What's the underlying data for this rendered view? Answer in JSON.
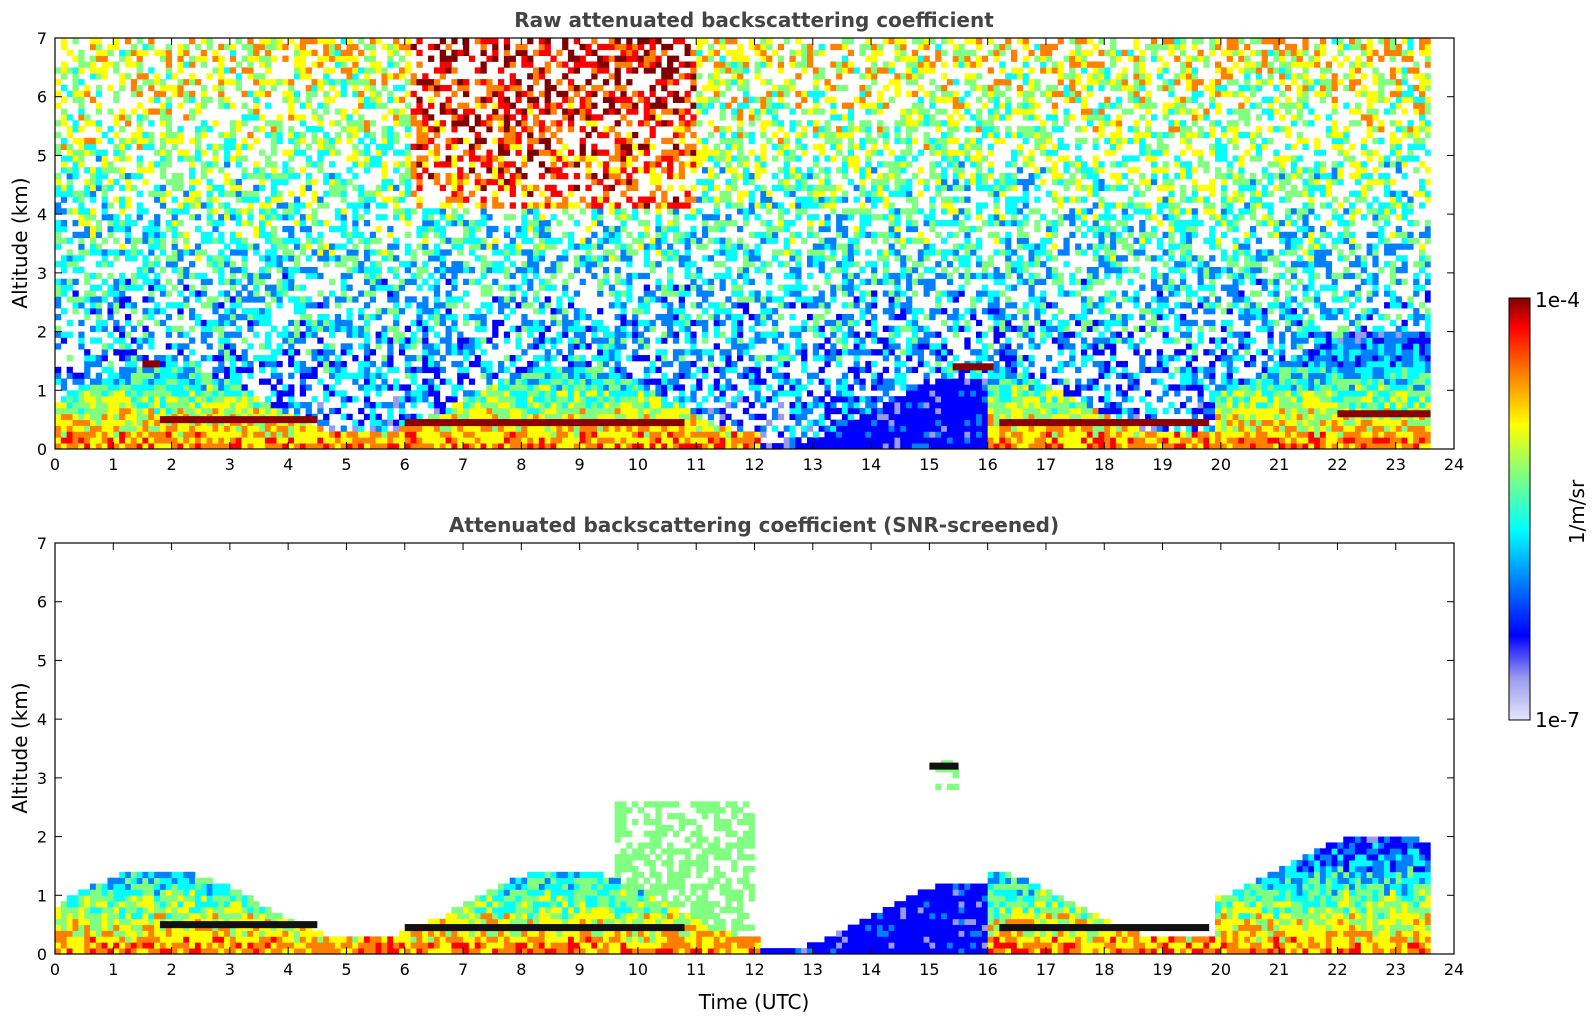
{
  "chart_data": [
    {
      "type": "heatmap",
      "title": "Raw attenuated backscattering coefficient",
      "xlabel": "",
      "ylabel": "Altitude (km)",
      "xlim": [
        0,
        24
      ],
      "ylim": [
        0,
        7
      ],
      "xticks": [
        "0",
        "1",
        "2",
        "3",
        "4",
        "5",
        "6",
        "7",
        "8",
        "9",
        "10",
        "11",
        "12",
        "13",
        "14",
        "15",
        "16",
        "17",
        "18",
        "19",
        "20",
        "21",
        "22",
        "23",
        "24"
      ],
      "yticks": [
        "0",
        "1",
        "2",
        "3",
        "4",
        "5",
        "6",
        "7"
      ],
      "data_end_hour": 23.6,
      "features": [
        {
          "name": "boundary-layer-aerosol",
          "t_start": 0,
          "t_end": 23.6,
          "alt_top": 0.5,
          "level": 0.75
        },
        {
          "name": "cloud-layer-morning",
          "t_start": 1.8,
          "t_end": 4.5,
          "alt": 0.5,
          "level": 1.0
        },
        {
          "name": "cloud-layer-mid",
          "t_start": 6.0,
          "t_end": 10.8,
          "alt": 0.45,
          "level": 1.0
        },
        {
          "name": "cloud-layer-afternoon",
          "t_start": 16.2,
          "t_end": 19.8,
          "alt": 0.45,
          "level": 1.0
        },
        {
          "name": "cloud-layer-evening",
          "t_start": 22.0,
          "t_end": 23.6,
          "alt": 0.6,
          "level": 1.0
        },
        {
          "name": "elevated-cloud-1",
          "t_start": 1.5,
          "t_end": 1.8,
          "alt": 1.45,
          "level": 1.0
        },
        {
          "name": "elevated-cloud-2",
          "t_start": 15.4,
          "t_end": 16.1,
          "alt": 1.4,
          "level": 1.0
        },
        {
          "name": "convective-plumes",
          "t_start": 19.8,
          "t_end": 23.6,
          "alt_top": 1.7,
          "level": 0.7
        },
        {
          "name": "noise-background",
          "t_start": 0,
          "t_end": 23.6,
          "alt_top": 7,
          "level": 0.4
        }
      ]
    },
    {
      "type": "heatmap",
      "title": "Attenuated backscattering coefficient (SNR-screened)",
      "xlabel": "Time (UTC)",
      "ylabel": "Altitude (km)",
      "xlim": [
        0,
        24
      ],
      "ylim": [
        0,
        7
      ],
      "xticks": [
        "0",
        "1",
        "2",
        "3",
        "4",
        "5",
        "6",
        "7",
        "8",
        "9",
        "10",
        "11",
        "12",
        "13",
        "14",
        "15",
        "16",
        "17",
        "18",
        "19",
        "20",
        "21",
        "22",
        "23",
        "24"
      ],
      "yticks": [
        "0",
        "1",
        "2",
        "3",
        "4",
        "5",
        "6",
        "7"
      ],
      "data_end_hour": 23.6,
      "features": [
        {
          "name": "boundary-layer-aerosol",
          "t_start": 0,
          "t_end": 23.6,
          "alt_top": 1.5,
          "level": 0.6
        },
        {
          "name": "cloud-layer-morning",
          "t_start": 1.8,
          "t_end": 4.5,
          "alt": 0.5,
          "level": 1.0
        },
        {
          "name": "cloud-layer-mid",
          "t_start": 6.0,
          "t_end": 10.8,
          "alt": 0.45,
          "level": 1.0
        },
        {
          "name": "cloud-layer-afternoon",
          "t_start": 16.2,
          "t_end": 19.8,
          "alt": 0.45,
          "level": 1.0
        },
        {
          "name": "elevated-plume",
          "t_start": 15.0,
          "t_end": 15.5,
          "alt": 3.2,
          "level": 0.45
        }
      ]
    }
  ],
  "colorbar": {
    "max_label": "1e-4",
    "min_label": "1e-7",
    "unit_label": "1/m/sr",
    "colors": [
      "#e6e6fa",
      "#9999ee",
      "#0000ff",
      "#0080ff",
      "#00ffff",
      "#80ff80",
      "#ffff00",
      "#ff8000",
      "#ff0000",
      "#800000"
    ]
  }
}
